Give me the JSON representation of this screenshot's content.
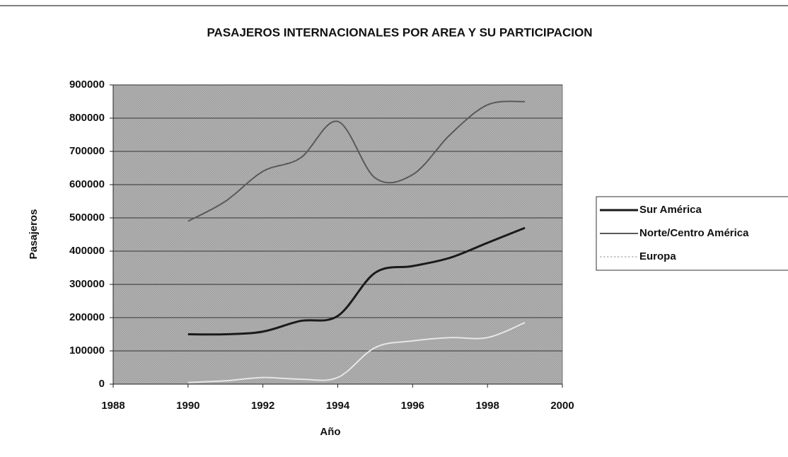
{
  "chart_data": {
    "type": "line",
    "title": "PASAJEROS INTERNACIONALES POR AREA Y SU PARTICIPACION",
    "x_label": "Año",
    "y_label": "Pasajeros",
    "x": [
      1990,
      1991,
      1992,
      1993,
      1994,
      1995,
      1996,
      1997,
      1998,
      1999
    ],
    "series": [
      {
        "name": "Sur América",
        "color": "#1a1a1a",
        "values": [
          150000,
          150000,
          158000,
          190000,
          205000,
          335000,
          355000,
          380000,
          425000,
          470000
        ]
      },
      {
        "name": "Norte/Centro América",
        "color": "#5a5a5a",
        "values": [
          490000,
          550000,
          640000,
          680000,
          790000,
          620000,
          630000,
          750000,
          840000,
          850000
        ]
      },
      {
        "name": "Europa",
        "color": "#e6e6e6",
        "values": [
          5000,
          10000,
          20000,
          15000,
          20000,
          110000,
          130000,
          140000,
          140000,
          185000
        ]
      }
    ],
    "xlim": [
      1988,
      2000
    ],
    "xticks": [
      1988,
      1990,
      1992,
      1994,
      1996,
      1998,
      2000
    ],
    "ylim": [
      0,
      900000
    ],
    "yticks": [
      0,
      100000,
      200000,
      300000,
      400000,
      500000,
      600000,
      700000,
      800000,
      900000
    ],
    "grid": true,
    "legend": "right"
  }
}
